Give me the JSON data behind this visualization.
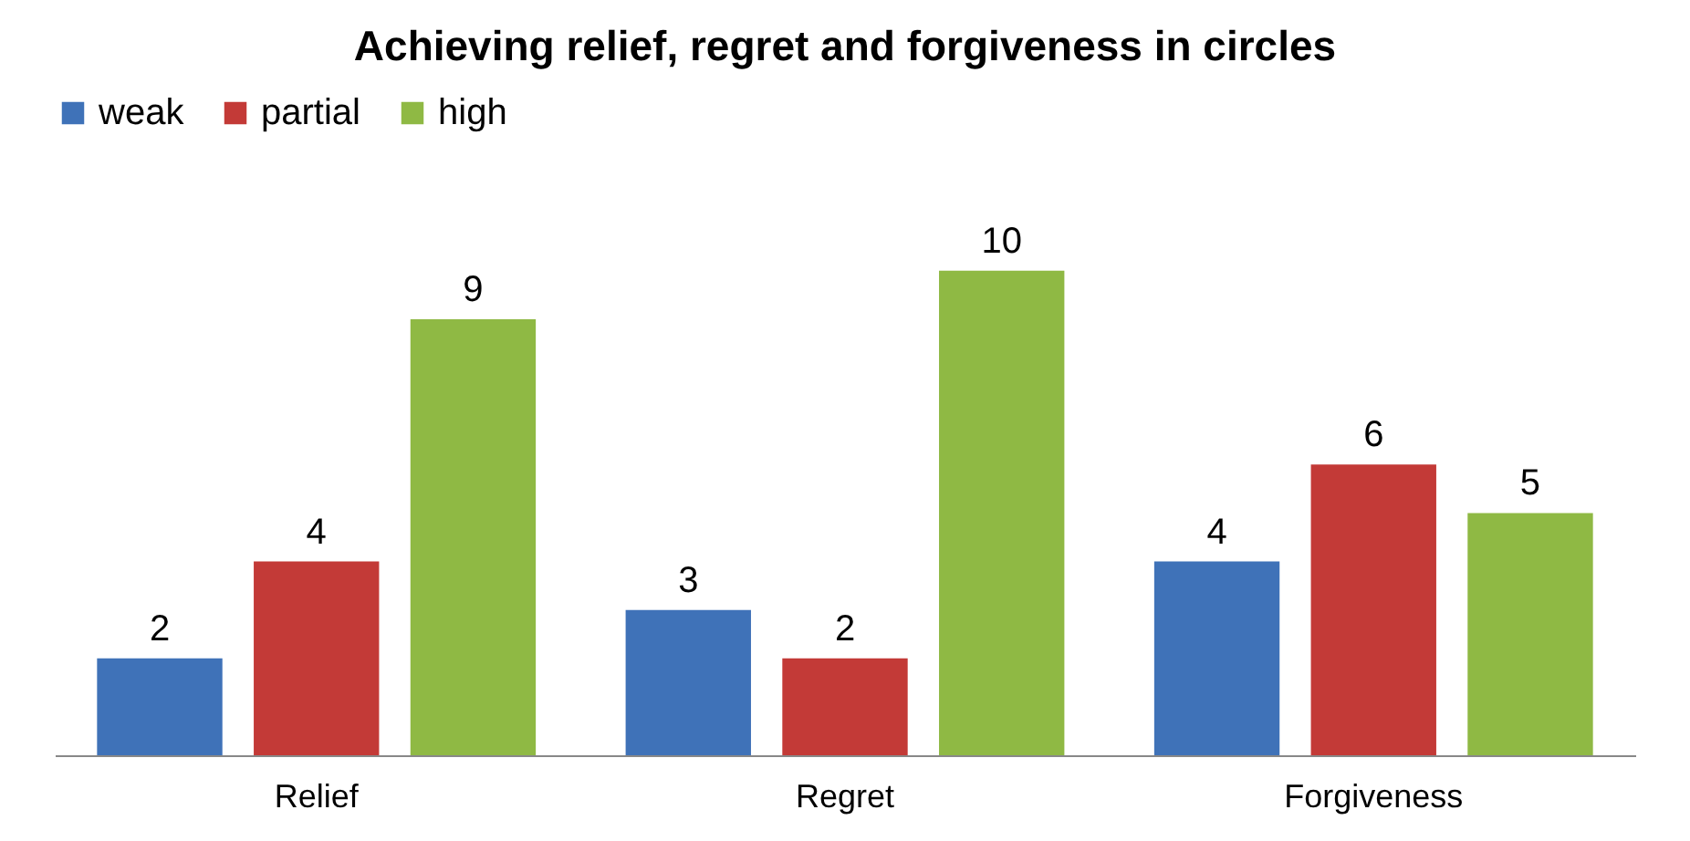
{
  "chart_data": {
    "type": "bar",
    "title": "Achieving relief, regret and forgiveness in circles",
    "categories": [
      "Relief",
      "Regret",
      "Forgiveness"
    ],
    "series": [
      {
        "name": "weak",
        "color": "#3f72b8",
        "values": [
          2,
          3,
          4
        ]
      },
      {
        "name": "partial",
        "color": "#c33a37",
        "values": [
          4,
          2,
          6
        ]
      },
      {
        "name": "high",
        "color": "#8fb944",
        "values": [
          9,
          10,
          5
        ]
      }
    ],
    "data_labels": true,
    "legend": "top",
    "grid": false
  }
}
